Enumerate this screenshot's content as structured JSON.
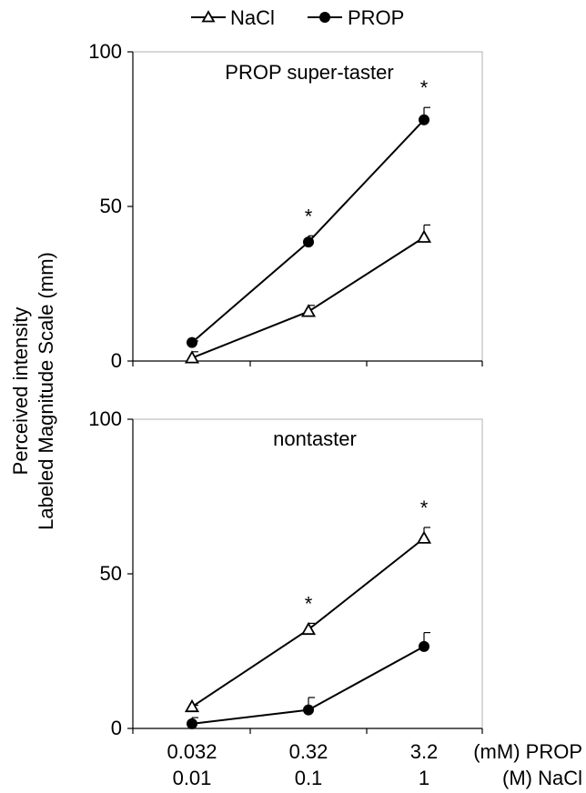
{
  "legend": {
    "position": "top-center",
    "items": [
      {
        "label": "NaCl",
        "marker": "open-triangle"
      },
      {
        "label": "PROP",
        "marker": "filled-circle"
      }
    ]
  },
  "y_axis_label": [
    "Perceived intensity",
    "Labeled Magnitude Scale (mm)"
  ],
  "x_axis": {
    "tick_rows": [
      {
        "labels": [
          "0.032",
          "0.32",
          "3.2"
        ],
        "unit": "(mM) PROP"
      },
      {
        "labels": [
          "0.01",
          "0.1",
          "1"
        ],
        "unit": "(M) NaCl"
      }
    ]
  },
  "chart_data": [
    {
      "type": "line",
      "title": "PROP super-taster",
      "categories": [
        "0.032",
        "0.32",
        "3.2"
      ],
      "ylim": [
        0,
        100
      ],
      "yticks": [
        0,
        50,
        100
      ],
      "grid": false,
      "series": [
        {
          "name": "NaCl",
          "values": [
            1,
            16,
            40
          ],
          "errors": [
            2,
            2,
            4
          ],
          "marker": "open-triangle",
          "color": "#000000"
        },
        {
          "name": "PROP",
          "values": [
            6,
            38.5,
            78
          ],
          "errors": [
            0.5,
            2,
            4
          ],
          "marker": "filled-circle",
          "color": "#000000"
        }
      ],
      "significance": [
        "",
        "*",
        "*"
      ]
    },
    {
      "type": "line",
      "title": "nontaster",
      "categories": [
        "0.032",
        "0.32",
        "3.2"
      ],
      "ylim": [
        0,
        100
      ],
      "yticks": [
        0,
        50,
        100
      ],
      "grid": false,
      "series": [
        {
          "name": "NaCl",
          "values": [
            7,
            32,
            61.5
          ],
          "errors": [
            0.5,
            2,
            3.5
          ],
          "marker": "open-triangle",
          "color": "#000000"
        },
        {
          "name": "PROP",
          "values": [
            1.5,
            6,
            26.5
          ],
          "errors": [
            2,
            4,
            4.5
          ],
          "marker": "filled-circle",
          "color": "#000000"
        }
      ],
      "significance": [
        "",
        "*",
        "*"
      ]
    }
  ]
}
